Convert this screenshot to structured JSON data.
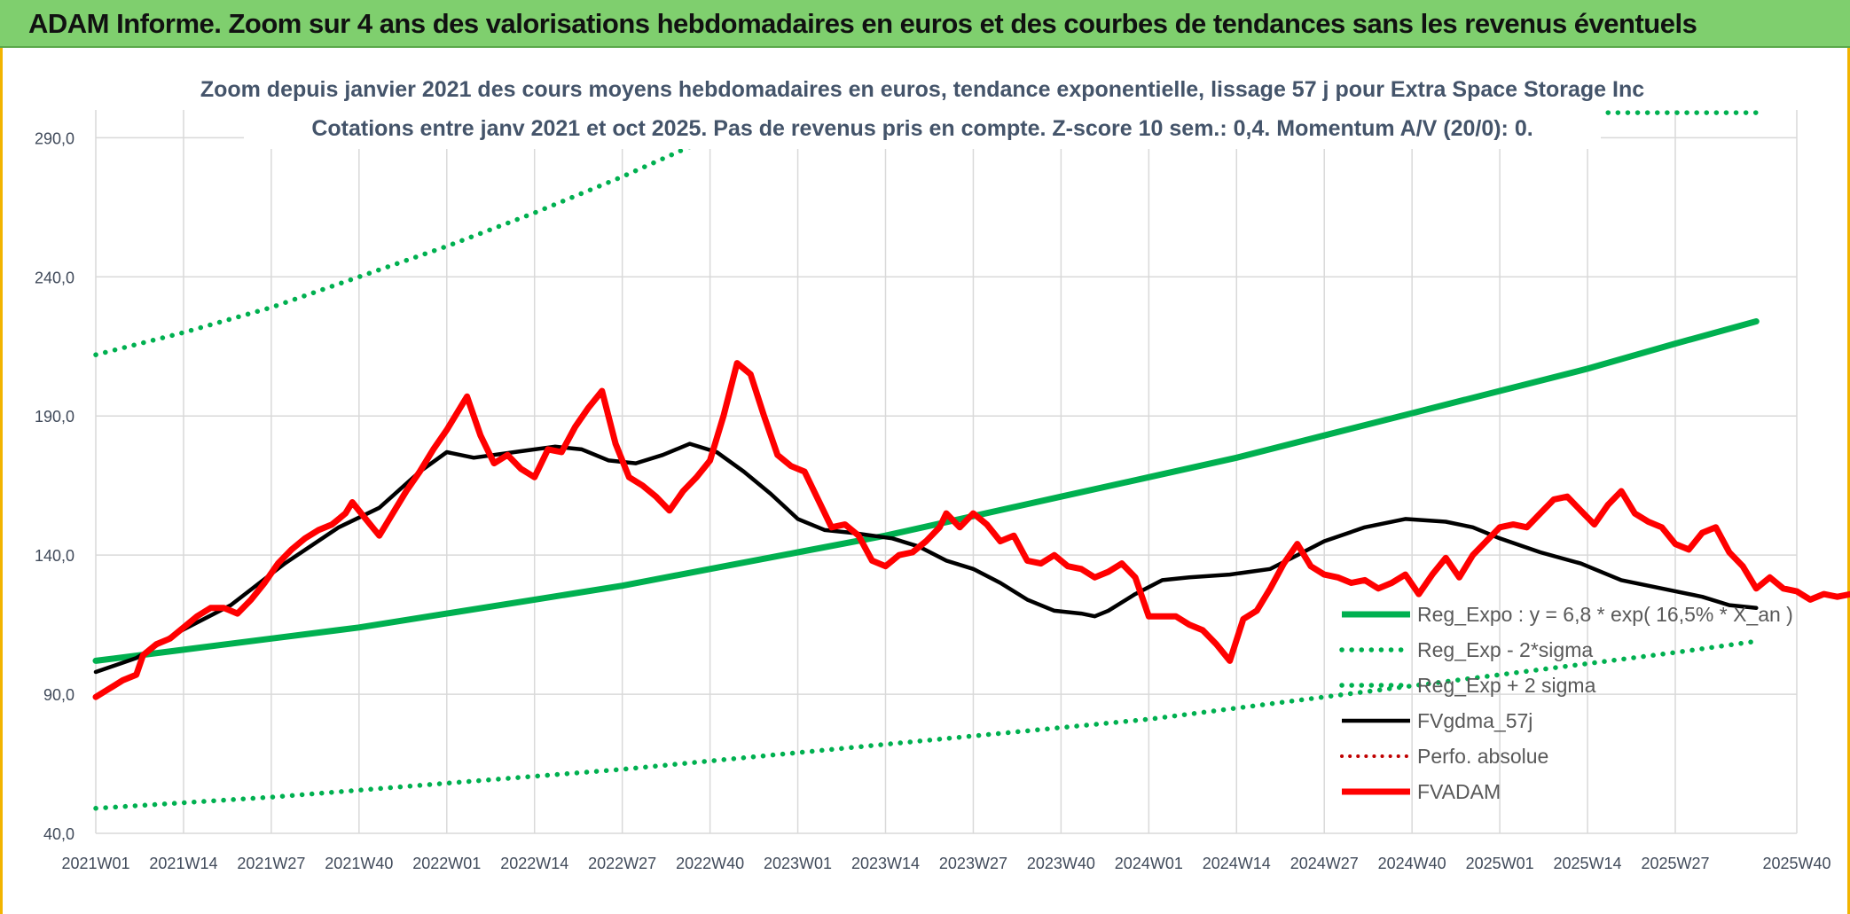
{
  "banner": {
    "title": "ADAM Informe. Zoom sur 4 ans des valorisations hebdomadaires en euros et des courbes de tendances sans les revenus éventuels"
  },
  "colors": {
    "banner": "#7fcf6e",
    "reg_expo": "#00b050",
    "fvgdma": "#000000",
    "fvadam": "#ff0000",
    "perfo": "#c00000",
    "grid": "#d9d9d9",
    "frame": "#f2b400"
  },
  "chart_data": {
    "type": "line",
    "title": "Zoom depuis janvier 2021 des cours moyens hebdomadaires en euros, tendance exponentielle, lissage 57 j pour Extra Space Storage Inc",
    "subtitle": "Cotations entre janv 2021 et oct 2025. Pas de revenus pris en compte. Z-score 10 sem.: 0,4. Momentum A/V (20/0): 0.",
    "xlabel": "",
    "ylabel": "",
    "ylim": [
      40,
      300
    ],
    "yticks": [
      "40,0",
      "90,0",
      "140,0",
      "190,0",
      "240,0",
      "290,0"
    ],
    "ytick_values": [
      40,
      90,
      140,
      190,
      240,
      290
    ],
    "xticks": [
      "2021W01",
      "2021W14",
      "2021W27",
      "2021W40",
      "2022W01",
      "2022W14",
      "2022W27",
      "2022W40",
      "2023W01",
      "2023W14",
      "2023W27",
      "2023W40",
      "2024W01",
      "2024W14",
      "2024W27",
      "2024W40",
      "2025W01",
      "2025W14",
      "2025W27",
      "2025W40"
    ],
    "grid": true,
    "legend_position": "bottom-right",
    "series": [
      {
        "name": "Reg_Expo : y = 6,8 * exp( 16,5% *  X_an )",
        "style": "solid-thick",
        "points": [
          [
            0,
            102
          ],
          [
            13,
            106
          ],
          [
            26,
            110
          ],
          [
            39,
            114
          ],
          [
            52,
            119
          ],
          [
            65,
            124
          ],
          [
            78,
            129
          ],
          [
            91,
            135
          ],
          [
            104,
            141
          ],
          [
            117,
            147
          ],
          [
            130,
            154
          ],
          [
            143,
            161
          ],
          [
            156,
            168
          ],
          [
            169,
            175
          ],
          [
            182,
            183
          ],
          [
            195,
            191
          ],
          [
            208,
            199
          ],
          [
            221,
            207
          ],
          [
            234,
            216
          ],
          [
            246,
            224
          ]
        ]
      },
      {
        "name": "Reg_Exp - 2*sigma",
        "style": "dotted",
        "points": [
          [
            0,
            49
          ],
          [
            26,
            53
          ],
          [
            52,
            58
          ],
          [
            78,
            63
          ],
          [
            104,
            69
          ],
          [
            130,
            75
          ],
          [
            156,
            81
          ],
          [
            182,
            89
          ],
          [
            208,
            97
          ],
          [
            234,
            105
          ],
          [
            246,
            109
          ]
        ]
      },
      {
        "name": "Reg_Exp + 2 sigma",
        "style": "dotted",
        "points": [
          [
            0,
            212
          ],
          [
            13,
            220
          ],
          [
            26,
            229
          ],
          [
            39,
            240
          ],
          [
            52,
            251
          ],
          [
            65,
            263
          ],
          [
            78,
            276
          ],
          [
            91,
            290
          ],
          [
            96,
            296
          ]
        ]
      },
      {
        "name": "",
        "style": "dotted-flat",
        "points": [
          [
            208,
            299
          ],
          [
            246,
            299
          ]
        ]
      },
      {
        "name": "FVgdma_57j",
        "style": "solid",
        "points": [
          [
            0,
            98
          ],
          [
            6,
            103
          ],
          [
            12,
            112
          ],
          [
            20,
            122
          ],
          [
            28,
            137
          ],
          [
            36,
            150
          ],
          [
            42,
            157
          ],
          [
            48,
            170
          ],
          [
            52,
            177
          ],
          [
            56,
            175
          ],
          [
            62,
            177
          ],
          [
            68,
            179
          ],
          [
            72,
            178
          ],
          [
            76,
            174
          ],
          [
            80,
            173
          ],
          [
            84,
            176
          ],
          [
            88,
            180
          ],
          [
            92,
            177
          ],
          [
            96,
            170
          ],
          [
            100,
            162
          ],
          [
            104,
            153
          ],
          [
            108,
            149
          ],
          [
            112,
            148
          ],
          [
            118,
            146
          ],
          [
            122,
            143
          ],
          [
            126,
            138
          ],
          [
            130,
            135
          ],
          [
            134,
            130
          ],
          [
            138,
            124
          ],
          [
            142,
            120
          ],
          [
            146,
            119
          ],
          [
            148,
            118
          ],
          [
            150,
            120
          ],
          [
            154,
            126
          ],
          [
            158,
            131
          ],
          [
            162,
            132
          ],
          [
            168,
            133
          ],
          [
            174,
            135
          ],
          [
            178,
            140
          ],
          [
            182,
            145
          ],
          [
            188,
            150
          ],
          [
            194,
            153
          ],
          [
            200,
            152
          ],
          [
            204,
            150
          ],
          [
            208,
            146
          ],
          [
            214,
            141
          ],
          [
            220,
            137
          ],
          [
            226,
            131
          ],
          [
            232,
            128
          ],
          [
            238,
            125
          ],
          [
            242,
            122
          ],
          [
            246,
            121
          ]
        ]
      },
      {
        "name": "Perfo. absolue",
        "style": "dotted-red",
        "points": []
      },
      {
        "name": "FVADAM",
        "style": "solid-thick",
        "points": [
          [
            0,
            89
          ],
          [
            2,
            92
          ],
          [
            4,
            95
          ],
          [
            6,
            97
          ],
          [
            7,
            104
          ],
          [
            9,
            108
          ],
          [
            11,
            110
          ],
          [
            13,
            114
          ],
          [
            15,
            118
          ],
          [
            17,
            121
          ],
          [
            19,
            121
          ],
          [
            21,
            119
          ],
          [
            23,
            124
          ],
          [
            25,
            130
          ],
          [
            27,
            137
          ],
          [
            29,
            142
          ],
          [
            31,
            146
          ],
          [
            33,
            149
          ],
          [
            35,
            151
          ],
          [
            37,
            155
          ],
          [
            38,
            159
          ],
          [
            40,
            153
          ],
          [
            42,
            147
          ],
          [
            44,
            155
          ],
          [
            46,
            163
          ],
          [
            48,
            170
          ],
          [
            50,
            178
          ],
          [
            52,
            185
          ],
          [
            54,
            193
          ],
          [
            55,
            197
          ],
          [
            57,
            183
          ],
          [
            59,
            173
          ],
          [
            61,
            176
          ],
          [
            63,
            171
          ],
          [
            65,
            168
          ],
          [
            67,
            178
          ],
          [
            69,
            177
          ],
          [
            71,
            186
          ],
          [
            73,
            193
          ],
          [
            75,
            199
          ],
          [
            77,
            180
          ],
          [
            79,
            168
          ],
          [
            81,
            165
          ],
          [
            83,
            161
          ],
          [
            85,
            156
          ],
          [
            87,
            163
          ],
          [
            89,
            168
          ],
          [
            91,
            174
          ],
          [
            93,
            190
          ],
          [
            95,
            209
          ],
          [
            97,
            205
          ],
          [
            99,
            190
          ],
          [
            101,
            176
          ],
          [
            103,
            172
          ],
          [
            105,
            170
          ],
          [
            107,
            160
          ],
          [
            109,
            150
          ],
          [
            111,
            151
          ],
          [
            113,
            147
          ],
          [
            115,
            138
          ],
          [
            117,
            136
          ],
          [
            119,
            140
          ],
          [
            121,
            141
          ],
          [
            123,
            145
          ],
          [
            125,
            150
          ],
          [
            126,
            155
          ],
          [
            128,
            150
          ],
          [
            130,
            155
          ],
          [
            132,
            151
          ],
          [
            134,
            145
          ],
          [
            136,
            147
          ],
          [
            138,
            138
          ],
          [
            140,
            137
          ],
          [
            142,
            140
          ],
          [
            144,
            136
          ],
          [
            146,
            135
          ],
          [
            148,
            132
          ],
          [
            150,
            134
          ],
          [
            152,
            137
          ],
          [
            154,
            132
          ],
          [
            156,
            118
          ],
          [
            158,
            118
          ],
          [
            160,
            118
          ],
          [
            162,
            115
          ],
          [
            164,
            113
          ],
          [
            166,
            108
          ],
          [
            168,
            102
          ],
          [
            170,
            117
          ],
          [
            172,
            120
          ],
          [
            174,
            128
          ],
          [
            176,
            137
          ],
          [
            178,
            144
          ],
          [
            180,
            136
          ],
          [
            182,
            133
          ],
          [
            184,
            132
          ],
          [
            186,
            130
          ],
          [
            188,
            131
          ],
          [
            190,
            128
          ],
          [
            192,
            130
          ],
          [
            194,
            133
          ],
          [
            196,
            126
          ],
          [
            198,
            133
          ],
          [
            200,
            139
          ],
          [
            202,
            132
          ],
          [
            204,
            140
          ],
          [
            206,
            145
          ],
          [
            208,
            150
          ],
          [
            210,
            151
          ],
          [
            212,
            150
          ],
          [
            214,
            155
          ],
          [
            216,
            160
          ],
          [
            218,
            161
          ],
          [
            220,
            156
          ],
          [
            222,
            151
          ],
          [
            224,
            158
          ],
          [
            226,
            163
          ],
          [
            228,
            155
          ],
          [
            230,
            152
          ],
          [
            232,
            150
          ],
          [
            234,
            144
          ],
          [
            236,
            142
          ],
          [
            238,
            148
          ],
          [
            240,
            150
          ],
          [
            242,
            141
          ],
          [
            244,
            136
          ],
          [
            246,
            128
          ],
          [
            248,
            132
          ],
          [
            250,
            128
          ],
          [
            252,
            127
          ],
          [
            254,
            124
          ],
          [
            256,
            126
          ],
          [
            258,
            125
          ],
          [
            260,
            126
          ],
          [
            262,
            125
          ],
          [
            264,
            118
          ],
          [
            266,
            120
          ],
          [
            268,
            122
          ],
          [
            270,
            118
          ],
          [
            272,
            120
          ]
        ]
      }
    ]
  }
}
